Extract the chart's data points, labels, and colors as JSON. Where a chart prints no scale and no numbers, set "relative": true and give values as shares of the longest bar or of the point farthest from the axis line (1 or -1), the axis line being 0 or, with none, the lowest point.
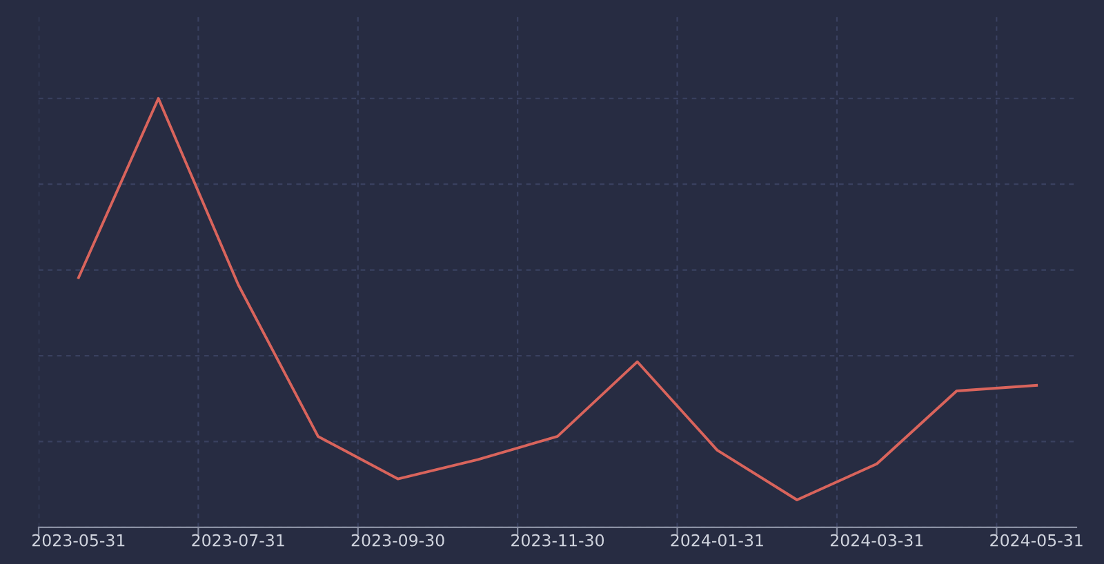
{
  "chart_data": {
    "type": "line",
    "relative": true,
    "grid": true,
    "legend": false,
    "marker": "none",
    "line_style": "solid",
    "categories": [
      "2023-05-31",
      null,
      "2023-07-31",
      null,
      "2023-09-30",
      null,
      "2023-11-30",
      null,
      "2024-01-31",
      null,
      "2024-03-31",
      null,
      "2024-05-31"
    ],
    "series": [
      {
        "color": "#d9645c",
        "values": [
          0.582,
          1,
          0.566,
          0.212,
          0.113,
          0.158,
          0.212,
          0.386,
          0.18,
          0.064,
          0.148,
          0.318,
          0.331
        ]
      }
    ]
  }
}
